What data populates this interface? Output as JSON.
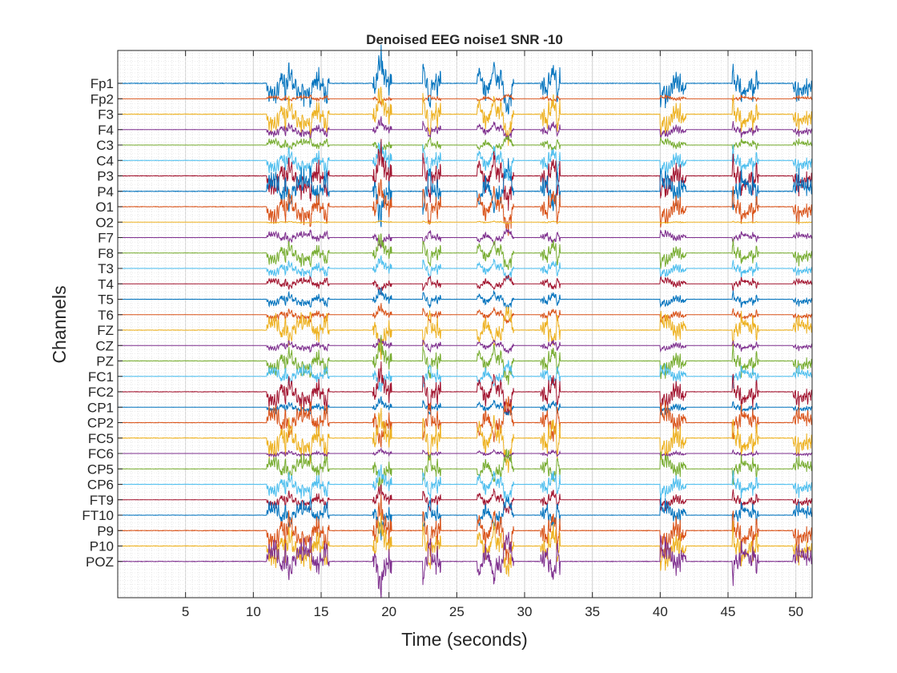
{
  "chart_data": {
    "type": "line",
    "title": "Denoised EEG noise1 SNR -10",
    "xlabel": "Time (seconds)",
    "ylabel": "Channels",
    "xlim": [
      0,
      51.2
    ],
    "x_ticks": [
      5,
      10,
      15,
      20,
      25,
      30,
      35,
      40,
      45,
      50
    ],
    "grid": true,
    "legend": "none",
    "series_colors": [
      "#0072BD",
      "#D95319",
      "#EDB120",
      "#7E2F8E",
      "#77AC30",
      "#4DBEEE",
      "#A2142F"
    ],
    "channels": [
      "Fp1",
      "Fp2",
      "F3",
      "F4",
      "C3",
      "C4",
      "P3",
      "P4",
      "O1",
      "O2",
      "F7",
      "F8",
      "T3",
      "T4",
      "T5",
      "T6",
      "FZ",
      "CZ",
      "PZ",
      "FC1",
      "FC2",
      "CP1",
      "CP2",
      "FC5",
      "FC6",
      "CP5",
      "CP6",
      "FT9",
      "FT10",
      "P9",
      "P10",
      "POZ"
    ],
    "channel_amplitude": [
      1.0,
      0.15,
      0.9,
      0.35,
      0.3,
      0.65,
      1.0,
      1.0,
      0.85,
      0.05,
      0.3,
      0.6,
      0.4,
      0.3,
      0.35,
      0.3,
      0.8,
      0.25,
      0.7,
      0.5,
      0.85,
      0.3,
      0.85,
      1.0,
      0.15,
      0.65,
      0.6,
      0.45,
      0.65,
      1.0,
      1.0,
      1.0
    ],
    "artifact_bursts_seconds": [
      [
        11.0,
        15.6
      ],
      [
        18.8,
        20.2
      ],
      [
        22.5,
        23.8
      ],
      [
        26.5,
        29.2
      ],
      [
        31.2,
        32.6
      ],
      [
        40.0,
        41.9
      ],
      [
        45.3,
        47.3
      ],
      [
        49.8,
        51.2
      ]
    ]
  }
}
